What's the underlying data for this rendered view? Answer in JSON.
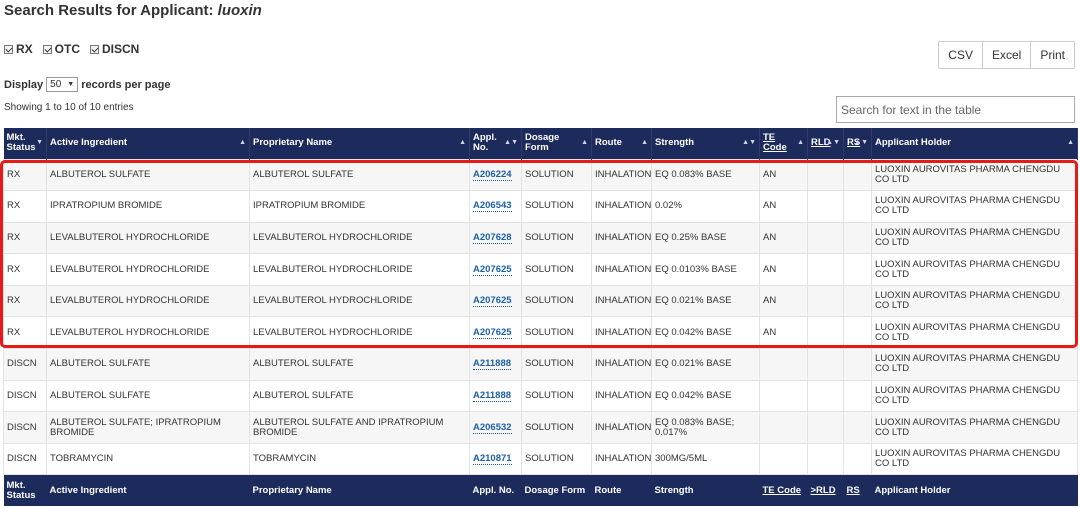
{
  "title": {
    "prefix": "Search Results for Applicant:",
    "query": "luoxin"
  },
  "filters": [
    {
      "label": "RX",
      "checked": true
    },
    {
      "label": "OTC",
      "checked": true
    },
    {
      "label": "DISCN",
      "checked": true
    }
  ],
  "export_buttons": {
    "csv": "CSV",
    "excel": "Excel",
    "print": "Print"
  },
  "display": {
    "prefix": "Display",
    "value": "50",
    "suffix": "records per page"
  },
  "showing": "Showing 1 to 10 of 10 entries",
  "search": {
    "placeholder": "Search for text in the table"
  },
  "columns": {
    "status_1": "Mkt.",
    "status_2": "Status",
    "ingredient": "Active Ingredient",
    "proprietary": "Proprietary Name",
    "appl_1": "Appl.",
    "appl_2": "No.",
    "dosage_1": "Dosage",
    "dosage_2": "Form",
    "route": "Route",
    "strength": "Strength",
    "te_1": "TE",
    "te_2": "Code",
    "rld": "RLD",
    "rs": "RS",
    "holder": "Applicant Holder"
  },
  "footer_columns": {
    "status_1": "Mkt.",
    "status_2": "Status",
    "ingredient": "Active Ingredient",
    "proprietary": "Proprietary Name",
    "appl": "Appl. No.",
    "dosage": "Dosage Form",
    "route": "Route",
    "strength": "Strength",
    "te": "TE Code",
    "rld": ">RLD",
    "rs": "RS",
    "holder": "Applicant Holder"
  },
  "rows": [
    {
      "status": "RX",
      "ingredient": "ALBUTEROL SULFATE",
      "proprietary": "ALBUTEROL SULFATE",
      "appl": "A206224",
      "dosage": "SOLUTION",
      "route": "INHALATION",
      "strength": "EQ 0.083% BASE",
      "te": "AN",
      "rld": "",
      "rs": "",
      "holder": "LUOXIN AUROVITAS PHARMA CHENGDU CO LTD"
    },
    {
      "status": "RX",
      "ingredient": "IPRATROPIUM BROMIDE",
      "proprietary": "IPRATROPIUM BROMIDE",
      "appl": "A206543",
      "dosage": "SOLUTION",
      "route": "INHALATION",
      "strength": "0.02%",
      "te": "AN",
      "rld": "",
      "rs": "",
      "holder": "LUOXIN AUROVITAS PHARMA CHENGDU CO LTD"
    },
    {
      "status": "RX",
      "ingredient": "LEVALBUTEROL HYDROCHLORIDE",
      "proprietary": "LEVALBUTEROL HYDROCHLORIDE",
      "appl": "A207628",
      "dosage": "SOLUTION",
      "route": "INHALATION",
      "strength": "EQ 0.25% BASE",
      "te": "AN",
      "rld": "",
      "rs": "",
      "holder": "LUOXIN AUROVITAS PHARMA CHENGDU CO LTD"
    },
    {
      "status": "RX",
      "ingredient": "LEVALBUTEROL HYDROCHLORIDE",
      "proprietary": "LEVALBUTEROL HYDROCHLORIDE",
      "appl": "A207625",
      "dosage": "SOLUTION",
      "route": "INHALATION",
      "strength": "EQ 0.0103% BASE",
      "te": "AN",
      "rld": "",
      "rs": "",
      "holder": "LUOXIN AUROVITAS PHARMA CHENGDU CO LTD"
    },
    {
      "status": "RX",
      "ingredient": "LEVALBUTEROL HYDROCHLORIDE",
      "proprietary": "LEVALBUTEROL HYDROCHLORIDE",
      "appl": "A207625",
      "dosage": "SOLUTION",
      "route": "INHALATION",
      "strength": "EQ 0.021% BASE",
      "te": "AN",
      "rld": "",
      "rs": "",
      "holder": "LUOXIN AUROVITAS PHARMA CHENGDU CO LTD"
    },
    {
      "status": "RX",
      "ingredient": "LEVALBUTEROL HYDROCHLORIDE",
      "proprietary": "LEVALBUTEROL HYDROCHLORIDE",
      "appl": "A207625",
      "dosage": "SOLUTION",
      "route": "INHALATION",
      "strength": "EQ 0.042% BASE",
      "te": "AN",
      "rld": "",
      "rs": "",
      "holder": "LUOXIN AUROVITAS PHARMA CHENGDU CO LTD"
    },
    {
      "status": "DISCN",
      "ingredient": "ALBUTEROL SULFATE",
      "proprietary": "ALBUTEROL SULFATE",
      "appl": "A211888",
      "dosage": "SOLUTION",
      "route": "INHALATION",
      "strength": "EQ 0.021% BASE",
      "te": "",
      "rld": "",
      "rs": "",
      "holder": "LUOXIN AUROVITAS PHARMA CHENGDU CO LTD"
    },
    {
      "status": "DISCN",
      "ingredient": "ALBUTEROL SULFATE",
      "proprietary": "ALBUTEROL SULFATE",
      "appl": "A211888",
      "dosage": "SOLUTION",
      "route": "INHALATION",
      "strength": "EQ 0.042% BASE",
      "te": "",
      "rld": "",
      "rs": "",
      "holder": "LUOXIN AUROVITAS PHARMA CHENGDU CO LTD"
    },
    {
      "status": "DISCN",
      "ingredient": "ALBUTEROL SULFATE; IPRATROPIUM BROMIDE",
      "proprietary": "ALBUTEROL SULFATE AND IPRATROPIUM BROMIDE",
      "appl": "A206532",
      "dosage": "SOLUTION",
      "route": "INHALATION",
      "strength": "EQ 0.083% BASE; 0.017%",
      "te": "",
      "rld": "",
      "rs": "",
      "holder": "LUOXIN AUROVITAS PHARMA CHENGDU CO LTD"
    },
    {
      "status": "DISCN",
      "ingredient": "TOBRAMYCIN",
      "proprietary": "TOBRAMYCIN",
      "appl": "A210871",
      "dosage": "SOLUTION",
      "route": "INHALATION",
      "strength": "300MG/5ML",
      "te": "",
      "rld": "",
      "rs": "",
      "holder": "LUOXIN AUROVITAS PHARMA CHENGDU CO LTD"
    }
  ],
  "colors": {
    "header_bg": "#1c2a5c",
    "link": "#1d5fa8",
    "highlight": "#e41b17"
  }
}
